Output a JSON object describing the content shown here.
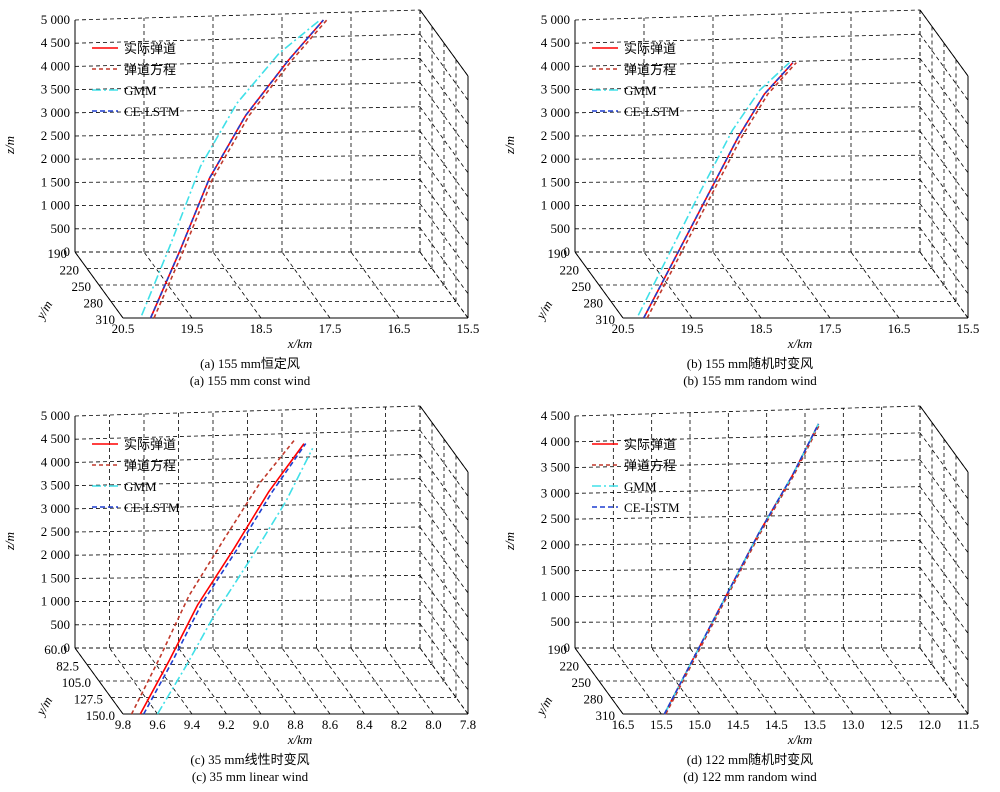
{
  "chart_data": [
    {
      "type": "line",
      "caption_cn": "(a) 155 mm恒定风",
      "caption_en": "(a) 155 mm const wind",
      "xlabel": "x/km",
      "ylabel": "y/m",
      "zlabel": "z/m",
      "x_ticks": [
        "20.5",
        "19.5",
        "18.5",
        "17.5",
        "16.5",
        "15.5"
      ],
      "y_ticks": [
        "190",
        "220",
        "250",
        "280",
        "310"
      ],
      "z_ticks": [
        "0",
        "500",
        "1 000",
        "1 500",
        "2 000",
        "2 500",
        "3 000",
        "3 500",
        "4 000",
        "4 500",
        "5 000"
      ],
      "xlim": [
        20.5,
        15.5
      ],
      "ylim": [
        190,
        310
      ],
      "zlim": [
        0,
        5000
      ],
      "grid": true,
      "legend_position": "top-left",
      "series": [
        {
          "name": "实际弹道",
          "x": [
            20.1,
            19.5,
            18.9,
            18.2,
            17.5,
            16.9
          ],
          "y": [
            310,
            280,
            250,
            220,
            205,
            190
          ],
          "z": [
            0,
            1100,
            2300,
            3300,
            4300,
            5000
          ]
        },
        {
          "name": "弹道方程",
          "x": [
            20.05,
            19.45,
            18.85,
            18.15,
            17.45,
            16.85
          ],
          "y": [
            310,
            280,
            250,
            220,
            205,
            190
          ],
          "z": [
            0,
            1100,
            2300,
            3300,
            4300,
            5000
          ]
        },
        {
          "name": "GMM",
          "x": [
            20.2,
            19.6,
            19.0,
            18.3,
            17.6,
            16.95
          ],
          "y": [
            305,
            275,
            245,
            215,
            200,
            190
          ],
          "z": [
            0,
            1200,
            2500,
            3500,
            4400,
            5000
          ]
        },
        {
          "name": "CE-LSTM",
          "x": [
            20.1,
            19.5,
            18.9,
            18.2,
            17.5,
            16.9
          ],
          "y": [
            310,
            280,
            250,
            220,
            205,
            190
          ],
          "z": [
            0,
            1100,
            2300,
            3300,
            4300,
            5000
          ]
        }
      ]
    },
    {
      "type": "line",
      "caption_cn": "(b) 155 mm随机时变风",
      "caption_en": "(b) 155 mm random wind",
      "xlabel": "x/km",
      "ylabel": "y/m",
      "zlabel": "z/m",
      "x_ticks": [
        "20.5",
        "19.5",
        "18.5",
        "17.5",
        "16.5",
        "15.5"
      ],
      "y_ticks": [
        "190",
        "220",
        "250",
        "280",
        "310"
      ],
      "z_ticks": [
        "0",
        "500",
        "1 000",
        "1 500",
        "2 000",
        "2 500",
        "3 000",
        "3 500",
        "4 000",
        "4 500",
        "5 000"
      ],
      "xlim": [
        20.5,
        15.5
      ],
      "ylim": [
        190,
        310
      ],
      "zlim": [
        0,
        5000
      ],
      "grid": true,
      "legend_position": "top-left",
      "series": [
        {
          "name": "实际弹道",
          "x": [
            20.2,
            19.6,
            19.0,
            18.4,
            17.9,
            17.4
          ],
          "y": [
            310,
            285,
            260,
            235,
            215,
            200
          ],
          "z": [
            0,
            1000,
            2000,
            3000,
            3700,
            4200
          ]
        },
        {
          "name": "弹道方程",
          "x": [
            20.15,
            19.55,
            18.95,
            18.35,
            17.85,
            17.35
          ],
          "y": [
            310,
            285,
            260,
            235,
            215,
            200
          ],
          "z": [
            0,
            1000,
            2000,
            3000,
            3700,
            4200
          ]
        },
        {
          "name": "GMM",
          "x": [
            20.25,
            19.65,
            19.05,
            18.45,
            17.95,
            17.45
          ],
          "y": [
            305,
            280,
            255,
            230,
            212,
            200
          ],
          "z": [
            0,
            1050,
            2100,
            3100,
            3750,
            4200
          ]
        },
        {
          "name": "CE-LSTM",
          "x": [
            20.2,
            19.6,
            19.0,
            18.4,
            17.9,
            17.4
          ],
          "y": [
            310,
            285,
            260,
            235,
            215,
            200
          ],
          "z": [
            0,
            1000,
            2000,
            3000,
            3700,
            4200
          ]
        }
      ]
    },
    {
      "type": "line",
      "caption_cn": "(c) 35 mm线性时变风",
      "caption_en": "(c) 35 mm linear wind",
      "xlabel": "x/km",
      "ylabel": "y/m",
      "zlabel": "z/m",
      "x_ticks": [
        "9.8",
        "9.6",
        "9.4",
        "9.2",
        "9.0",
        "8.8",
        "8.6",
        "8.4",
        "8.2",
        "8.0",
        "7.8"
      ],
      "y_ticks": [
        "60.0",
        "82.5",
        "105.0",
        "127.5",
        "150.0"
      ],
      "z_ticks": [
        "0",
        "500",
        "1 000",
        "1 500",
        "2 000",
        "2 500",
        "3 000",
        "3 500",
        "4 000",
        "4 500",
        "5 000"
      ],
      "xlim": [
        9.8,
        7.8
      ],
      "ylim": [
        60,
        150
      ],
      "zlim": [
        0,
        5000
      ],
      "grid": true,
      "legend_position": "top-left",
      "series": [
        {
          "name": "实际弹道",
          "x": [
            9.7,
            9.5,
            9.3,
            9.05,
            8.8,
            8.55
          ],
          "y": [
            150,
            140,
            128,
            115,
            100,
            85
          ],
          "z": [
            0,
            1000,
            2000,
            3000,
            4000,
            4800
          ]
        },
        {
          "name": "弹道方程",
          "x": [
            9.75,
            9.55,
            9.35,
            9.1,
            8.85,
            8.6
          ],
          "y": [
            150,
            140,
            128,
            115,
            100,
            85
          ],
          "z": [
            0,
            1100,
            2200,
            3250,
            4200,
            4900
          ]
        },
        {
          "name": "GMM",
          "x": [
            9.6,
            9.4,
            9.2,
            8.95,
            8.7,
            8.5
          ],
          "y": [
            150,
            140,
            128,
            115,
            100,
            85
          ],
          "z": [
            0,
            900,
            1800,
            2800,
            3800,
            4700
          ]
        },
        {
          "name": "CE-LSTM",
          "x": [
            9.68,
            9.48,
            9.28,
            9.03,
            8.78,
            8.54
          ],
          "y": [
            150,
            140,
            128,
            115,
            100,
            85
          ],
          "z": [
            0,
            1000,
            2000,
            3000,
            4000,
            4800
          ]
        }
      ]
    },
    {
      "type": "line",
      "caption_cn": "(d) 122 mm随机时变风",
      "caption_en": "(d) 122 mm random wind",
      "xlabel": "x/km",
      "ylabel": "y/m",
      "zlabel": "z/m",
      "x_ticks": [
        "16.5",
        "15.5",
        "15.0",
        "14.5",
        "14.5",
        "13.5",
        "13.0",
        "12.5",
        "12.0",
        "11.5"
      ],
      "y_ticks": [
        "190",
        "220",
        "250",
        "280",
        "310"
      ],
      "z_ticks": [
        "0",
        "500",
        "1 000",
        "1 500",
        "2 000",
        "2 500",
        "3 000",
        "3 500",
        "4 000",
        "4 500"
      ],
      "xlim": [
        16.5,
        11.5
      ],
      "ylim": [
        190,
        310
      ],
      "zlim": [
        0,
        4500
      ],
      "grid": true,
      "legend_position": "top-left",
      "series": [
        {
          "name": "实际弹道",
          "x": [
            15.9,
            15.3,
            14.7,
            14.1,
            13.5,
            13.0
          ],
          "y": [
            310,
            285,
            260,
            235,
            215,
            195
          ],
          "z": [
            0,
            900,
            1800,
            2700,
            3600,
            4400
          ]
        },
        {
          "name": "弹道方程",
          "x": [
            15.88,
            15.28,
            14.68,
            14.08,
            13.48,
            12.98
          ],
          "y": [
            310,
            285,
            260,
            235,
            215,
            195
          ],
          "z": [
            0,
            900,
            1800,
            2700,
            3600,
            4400
          ]
        },
        {
          "name": "GMM",
          "x": [
            15.9,
            15.3,
            14.7,
            14.1,
            13.5,
            13.0
          ],
          "y": [
            310,
            285,
            260,
            235,
            215,
            195
          ],
          "z": [
            0,
            900,
            1800,
            2700,
            3600,
            4400
          ]
        },
        {
          "name": "CE-LSTM",
          "x": [
            15.9,
            15.3,
            14.7,
            14.1,
            13.5,
            13.0
          ],
          "y": [
            310,
            285,
            260,
            235,
            215,
            195
          ],
          "z": [
            0,
            900,
            1800,
            2700,
            3600,
            4400
          ]
        }
      ]
    }
  ],
  "style": {
    "series_colors": [
      "#ff0000",
      "#c0392b",
      "#40e0e8",
      "#1f3fd0"
    ],
    "series_dash": [
      "",
      "4,3",
      "9,3,2,3",
      "5,3"
    ],
    "grid_color": "#000000"
  }
}
